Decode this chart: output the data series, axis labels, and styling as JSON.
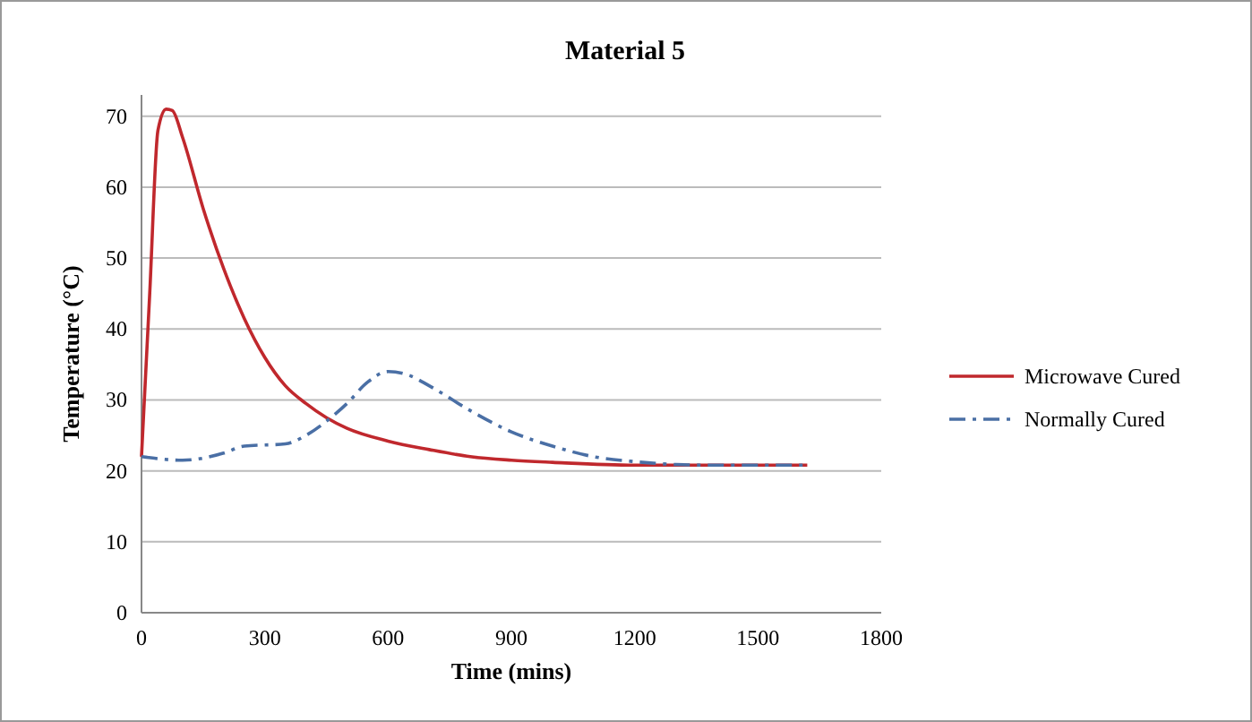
{
  "chart_data": {
    "type": "line",
    "title": "Material 5",
    "xlabel": "Time (mins)",
    "ylabel": "Temperature (°C)",
    "xlim": [
      0,
      1800
    ],
    "xticks": [
      0,
      300,
      600,
      900,
      1200,
      1500,
      1800
    ],
    "ylim": [
      0,
      73
    ],
    "yticks": [
      0,
      10,
      20,
      30,
      40,
      50,
      60,
      70
    ],
    "grid": "y",
    "legend": "right",
    "series": [
      {
        "name": "Microwave Cured",
        "color": "#c0282d",
        "line_style": "solid",
        "x": [
          0,
          20,
          40,
          60,
          75,
          100,
          150,
          200,
          250,
          300,
          350,
          400,
          450,
          500,
          600,
          700,
          800,
          900,
          1000,
          1200,
          1400,
          1620
        ],
        "values": [
          22,
          45,
          68,
          71,
          70.8,
          67,
          57,
          48.5,
          41.5,
          36,
          32,
          29.5,
          27.5,
          26,
          24.2,
          23,
          22,
          21.5,
          21.2,
          20.8,
          20.8,
          20.8
        ]
      },
      {
        "name": "Normally Cured",
        "color": "#4a6fa5",
        "line_style": "dashed",
        "x": [
          0,
          100,
          200,
          250,
          350,
          400,
          450,
          500,
          550,
          600,
          650,
          700,
          800,
          900,
          1000,
          1100,
          1200,
          1300,
          1400,
          1620
        ],
        "values": [
          22,
          21.5,
          22.5,
          23.5,
          23.8,
          25,
          27,
          29.5,
          32.5,
          34,
          33.5,
          32,
          28.5,
          25.5,
          23.5,
          22,
          21.3,
          20.9,
          20.8,
          20.8
        ]
      }
    ]
  }
}
